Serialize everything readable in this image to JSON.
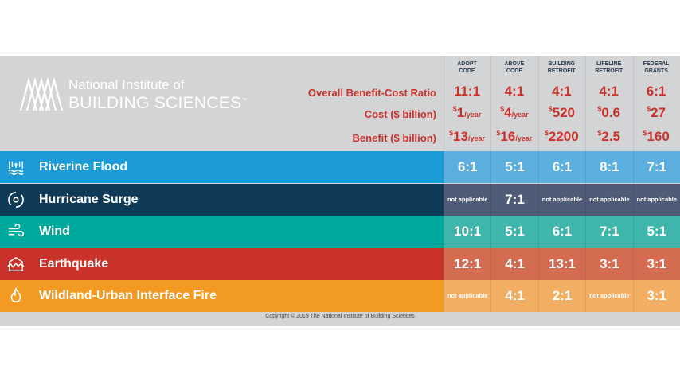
{
  "logo": {
    "line1": "National Institute of",
    "line2": "BUILDING SCIENCES",
    "tm": "™"
  },
  "columns": [
    [
      "ADOPT",
      "CODE"
    ],
    [
      "ABOVE",
      "CODE"
    ],
    [
      "BUILDING",
      "RETROFIT"
    ],
    [
      "LIFELINE",
      "RETROFIT"
    ],
    [
      "FEDERAL",
      "GRANTS"
    ]
  ],
  "labels": {
    "ratio": "Overall Benefit-Cost Ratio",
    "cost": "Cost ($ billion)",
    "benefit": "Benefit ($ billion)"
  },
  "ratio": [
    "11:1",
    "4:1",
    "4:1",
    "4:1",
    "6:1"
  ],
  "cost": [
    {
      "sym": "$",
      "v": "1",
      "u": "/year"
    },
    {
      "sym": "$",
      "v": "4",
      "u": "/year"
    },
    {
      "sym": "$",
      "v": "520",
      "u": ""
    },
    {
      "sym": "$",
      "v": "0.6",
      "u": ""
    },
    {
      "sym": "$",
      "v": "27",
      "u": ""
    }
  ],
  "benefit": [
    {
      "sym": "$",
      "v": "13",
      "u": "/year"
    },
    {
      "sym": "$",
      "v": "16",
      "u": "/year"
    },
    {
      "sym": "$",
      "v": "2200",
      "u": ""
    },
    {
      "sym": "$",
      "v": "2.5",
      "u": ""
    },
    {
      "sym": "$",
      "v": "160",
      "u": ""
    }
  ],
  "rows": [
    {
      "name": "Riverine Flood",
      "icon": "flood-icon",
      "color": "#1b9bd7",
      "cell": "#5dafe0",
      "values": [
        "6:1",
        "5:1",
        "6:1",
        "8:1",
        "7:1"
      ]
    },
    {
      "name": "Hurricane Surge",
      "icon": "hurricane-icon",
      "color": "#0f3b58",
      "cell": "#4f5c77",
      "values": [
        "not applicable",
        "7:1",
        "not applicable",
        "not applicable",
        "not applicable"
      ]
    },
    {
      "name": "Wind",
      "icon": "wind-icon",
      "color": "#00a99d",
      "cell": "#3fb6ac",
      "values": [
        "10:1",
        "5:1",
        "6:1",
        "7:1",
        "5:1"
      ]
    },
    {
      "name": "Earthquake",
      "icon": "earthquake-icon",
      "color": "#c9322b",
      "cell": "#d46c52",
      "values": [
        "12:1",
        "4:1",
        "13:1",
        "3:1",
        "3:1"
      ]
    },
    {
      "name": "Wildland-Urban Interface Fire",
      "icon": "fire-icon",
      "color": "#f39a22",
      "cell": "#f2af64",
      "values": [
        "not applicable",
        "4:1",
        "2:1",
        "not applicable",
        "3:1"
      ]
    }
  ],
  "footer": "Copyright © 2019 The National Institute of Building Sciences"
}
